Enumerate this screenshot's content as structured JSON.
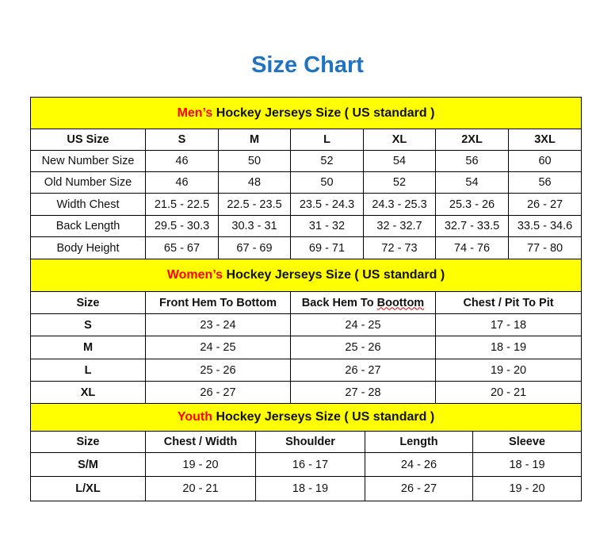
{
  "title": "Size Chart",
  "men": {
    "prefix": "Men’s",
    "banner": " Hockey Jerseys Size ( US standard )",
    "headers": [
      "US Size",
      "S",
      "M",
      "L",
      "XL",
      "2XL",
      "3XL"
    ],
    "rows": [
      [
        "New Number Size",
        "46",
        "50",
        "52",
        "54",
        "56",
        "60"
      ],
      [
        "Old Number Size",
        "46",
        "48",
        "50",
        "52",
        "54",
        "56"
      ],
      [
        "Width Chest",
        "21.5 - 22.5",
        "22.5 - 23.5",
        "23.5 - 24.3",
        "24.3 - 25.3",
        "25.3 - 26",
        "26 - 27"
      ],
      [
        "Back Length",
        "29.5 - 30.3",
        "30.3 - 31",
        "31 - 32",
        "32 - 32.7",
        "32.7 - 33.5",
        "33.5 - 34.6"
      ],
      [
        "Body Height",
        "65 - 67",
        "67 - 69",
        "69 - 71",
        "72 - 73",
        "74 - 76",
        "77 - 80"
      ]
    ]
  },
  "women": {
    "prefix": "Women’s",
    "banner": " Hockey Jerseys Size ( US standard )",
    "headers": [
      "Size",
      "Front Hem To Bottom",
      "Back Hem To Boottom",
      "Chest / Pit To Pit"
    ],
    "rows": [
      [
        "S",
        "23 - 24",
        "24 - 25",
        "17 - 18"
      ],
      [
        "M",
        "24 - 25",
        "25 - 26",
        "18 - 19"
      ],
      [
        "L",
        "25 - 26",
        "26 - 27",
        "19 - 20"
      ],
      [
        "XL",
        "26 - 27",
        "27 - 28",
        "20 - 21"
      ]
    ]
  },
  "youth": {
    "prefix": "Youth",
    "banner": " Hockey Jerseys Size ( US standard )",
    "headers": [
      "Size",
      "Chest / Width",
      "Shoulder",
      "Length",
      "Sleeve"
    ],
    "rows": [
      [
        "S/M",
        "19 - 20",
        "16 - 17",
        "24 - 26",
        "18 - 19"
      ],
      [
        "L/XL",
        "20 - 21",
        "18 - 19",
        "26 - 27",
        "19 - 20"
      ]
    ]
  }
}
